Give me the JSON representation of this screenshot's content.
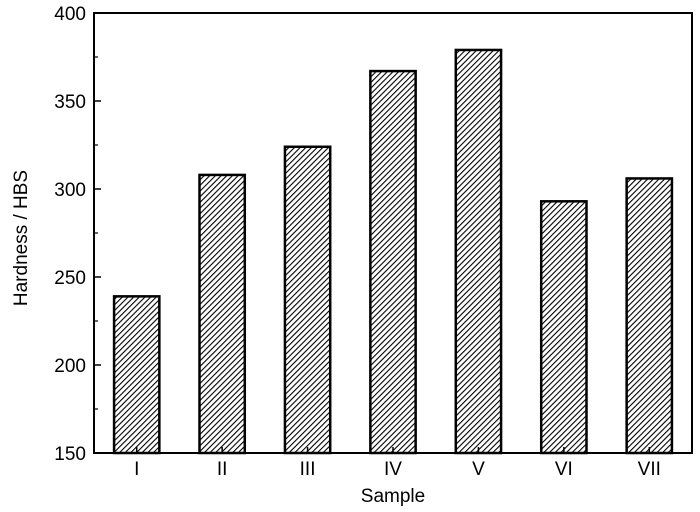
{
  "chart_data": {
    "type": "bar",
    "title": "",
    "xlabel": "Sample",
    "ylabel": "Hardness / HBS",
    "categories": [
      "I",
      "II",
      "III",
      "IV",
      "V",
      "VI",
      "VII"
    ],
    "values": [
      239,
      308,
      324,
      367,
      379,
      293,
      306
    ],
    "ylim": [
      150,
      400
    ],
    "yticks": [
      150,
      200,
      250,
      300,
      350,
      400
    ],
    "ytick_labels": [
      "150",
      "200",
      "250",
      "300",
      "350",
      "400"
    ],
    "grid": false,
    "legend": "none",
    "bar_fill": "diagonal-hatch",
    "colors": {
      "bar_stroke": "#000000",
      "hatch": "#000000",
      "background": "#ffffff"
    }
  }
}
